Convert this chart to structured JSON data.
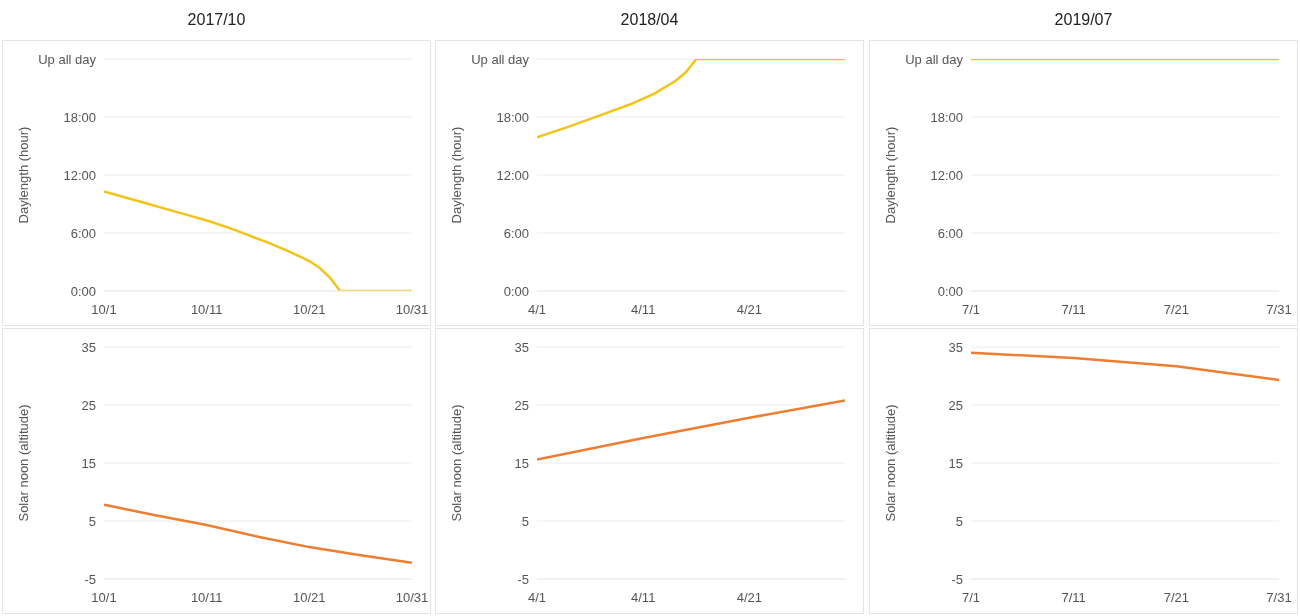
{
  "chart_data": [
    {
      "type": "line",
      "title": "2017/10",
      "ylabel": "Daylength (hour)",
      "grid": "y",
      "xlim": [
        "2017-10-01",
        "2017-10-31"
      ],
      "xticks": [
        {
          "value": "2017-10-01",
          "label": "10/1"
        },
        {
          "value": "2017-10-11",
          "label": "10/11"
        },
        {
          "value": "2017-10-21",
          "label": "10/21"
        },
        {
          "value": "2017-10-31",
          "label": "10/31"
        }
      ],
      "ylim": [
        0,
        24
      ],
      "yticks": [
        {
          "value": 0,
          "label": "0:00"
        },
        {
          "value": 6,
          "label": "6:00"
        },
        {
          "value": 12,
          "label": "12:00"
        },
        {
          "value": 18,
          "label": "18:00"
        },
        {
          "value": 24,
          "label": "Up all day"
        }
      ],
      "x": [
        "2017-10-01",
        "2017-10-03",
        "2017-10-05",
        "2017-10-07",
        "2017-10-09",
        "2017-10-11",
        "2017-10-13",
        "2017-10-15",
        "2017-10-17",
        "2017-10-19",
        "2017-10-20",
        "2017-10-21",
        "2017-10-22",
        "2017-10-23",
        "2017-10-24",
        "2017-10-31"
      ],
      "series": [
        {
          "color": "#f2c318",
          "values": [
            10.3,
            9.7,
            9.1,
            8.5,
            7.9,
            7.3,
            6.6,
            5.8,
            5.0,
            4.1,
            3.6,
            3.1,
            2.4,
            1.4,
            0,
            0
          ]
        }
      ]
    },
    {
      "type": "line",
      "title": "2018/04",
      "ylabel": "Daylength (hour)",
      "grid": "y",
      "xlim": [
        "2018-04-01",
        "2018-04-30"
      ],
      "xticks": [
        {
          "value": "2018-04-01",
          "label": "4/1"
        },
        {
          "value": "2018-04-11",
          "label": "4/11"
        },
        {
          "value": "2018-04-21",
          "label": "4/21"
        }
      ],
      "ylim": [
        0,
        24
      ],
      "yticks": [
        {
          "value": 0,
          "label": "0:00"
        },
        {
          "value": 6,
          "label": "6:00"
        },
        {
          "value": 12,
          "label": "12:00"
        },
        {
          "value": 18,
          "label": "18:00"
        },
        {
          "value": 24,
          "label": "Up all day"
        }
      ],
      "x": [
        "2018-04-01",
        "2018-04-04",
        "2018-04-07",
        "2018-04-10",
        "2018-04-12",
        "2018-04-14",
        "2018-04-15",
        "2018-04-16",
        "2018-04-30"
      ],
      "series": [
        {
          "color": "#f2c318",
          "values": [
            15.9,
            17.0,
            18.2,
            19.4,
            20.4,
            21.7,
            22.6,
            24,
            24
          ]
        }
      ]
    },
    {
      "type": "line",
      "title": "2019/07",
      "ylabel": "Daylength (hour)",
      "grid": "y",
      "xlim": [
        "2019-07-01",
        "2019-07-31"
      ],
      "xticks": [
        {
          "value": "2019-07-01",
          "label": "7/1"
        },
        {
          "value": "2019-07-11",
          "label": "7/11"
        },
        {
          "value": "2019-07-21",
          "label": "7/21"
        },
        {
          "value": "2019-07-31",
          "label": "7/31"
        }
      ],
      "ylim": [
        0,
        24
      ],
      "yticks": [
        {
          "value": 0,
          "label": "0:00"
        },
        {
          "value": 6,
          "label": "6:00"
        },
        {
          "value": 12,
          "label": "12:00"
        },
        {
          "value": 18,
          "label": "18:00"
        },
        {
          "value": 24,
          "label": "Up all day"
        }
      ],
      "x": [
        "2019-07-01",
        "2019-07-31"
      ],
      "series": [
        {
          "color": "#f2c318",
          "values": [
            24,
            24
          ]
        }
      ]
    },
    {
      "type": "line",
      "ylabel": "Solar noon (altitude)",
      "grid": "y",
      "xlim": [
        "2017-10-01",
        "2017-10-31"
      ],
      "xticks": [
        {
          "value": "2017-10-01",
          "label": "10/1"
        },
        {
          "value": "2017-10-11",
          "label": "10/11"
        },
        {
          "value": "2017-10-21",
          "label": "10/21"
        },
        {
          "value": "2017-10-31",
          "label": "10/31"
        }
      ],
      "ylim": [
        -5,
        35
      ],
      "yticks": [
        -5,
        5,
        15,
        25,
        35
      ],
      "x": [
        "2017-10-01",
        "2017-10-06",
        "2017-10-11",
        "2017-10-16",
        "2017-10-21",
        "2017-10-26",
        "2017-10-31"
      ],
      "series": [
        {
          "color": "#ed7d31",
          "values": [
            7.8,
            6.0,
            4.3,
            2.3,
            0.5,
            -0.9,
            -2.2
          ]
        }
      ]
    },
    {
      "type": "line",
      "ylabel": "Solar noon (altitude)",
      "grid": "y",
      "xlim": [
        "2018-04-01",
        "2018-04-30"
      ],
      "xticks": [
        {
          "value": "2018-04-01",
          "label": "4/1"
        },
        {
          "value": "2018-04-11",
          "label": "4/11"
        },
        {
          "value": "2018-04-21",
          "label": "4/21"
        }
      ],
      "ylim": [
        -5,
        35
      ],
      "yticks": [
        -5,
        5,
        15,
        25,
        35
      ],
      "x": [
        "2018-04-01",
        "2018-04-11",
        "2018-04-21",
        "2018-04-30"
      ],
      "series": [
        {
          "color": "#ed7d31",
          "values": [
            15.6,
            19.3,
            22.8,
            25.8
          ]
        }
      ]
    },
    {
      "type": "line",
      "ylabel": "Solar noon (altitude)",
      "grid": "y",
      "xlim": [
        "2019-07-01",
        "2019-07-31"
      ],
      "xticks": [
        {
          "value": "2019-07-01",
          "label": "7/1"
        },
        {
          "value": "2019-07-11",
          "label": "7/11"
        },
        {
          "value": "2019-07-21",
          "label": "7/21"
        },
        {
          "value": "2019-07-31",
          "label": "7/31"
        }
      ],
      "ylim": [
        -5,
        35
      ],
      "yticks": [
        -5,
        5,
        15,
        25,
        35
      ],
      "x": [
        "2019-07-01",
        "2019-07-11",
        "2019-07-21",
        "2019-07-31"
      ],
      "series": [
        {
          "color": "#ed7d31",
          "values": [
            34.0,
            33.1,
            31.7,
            29.3
          ]
        }
      ]
    }
  ]
}
